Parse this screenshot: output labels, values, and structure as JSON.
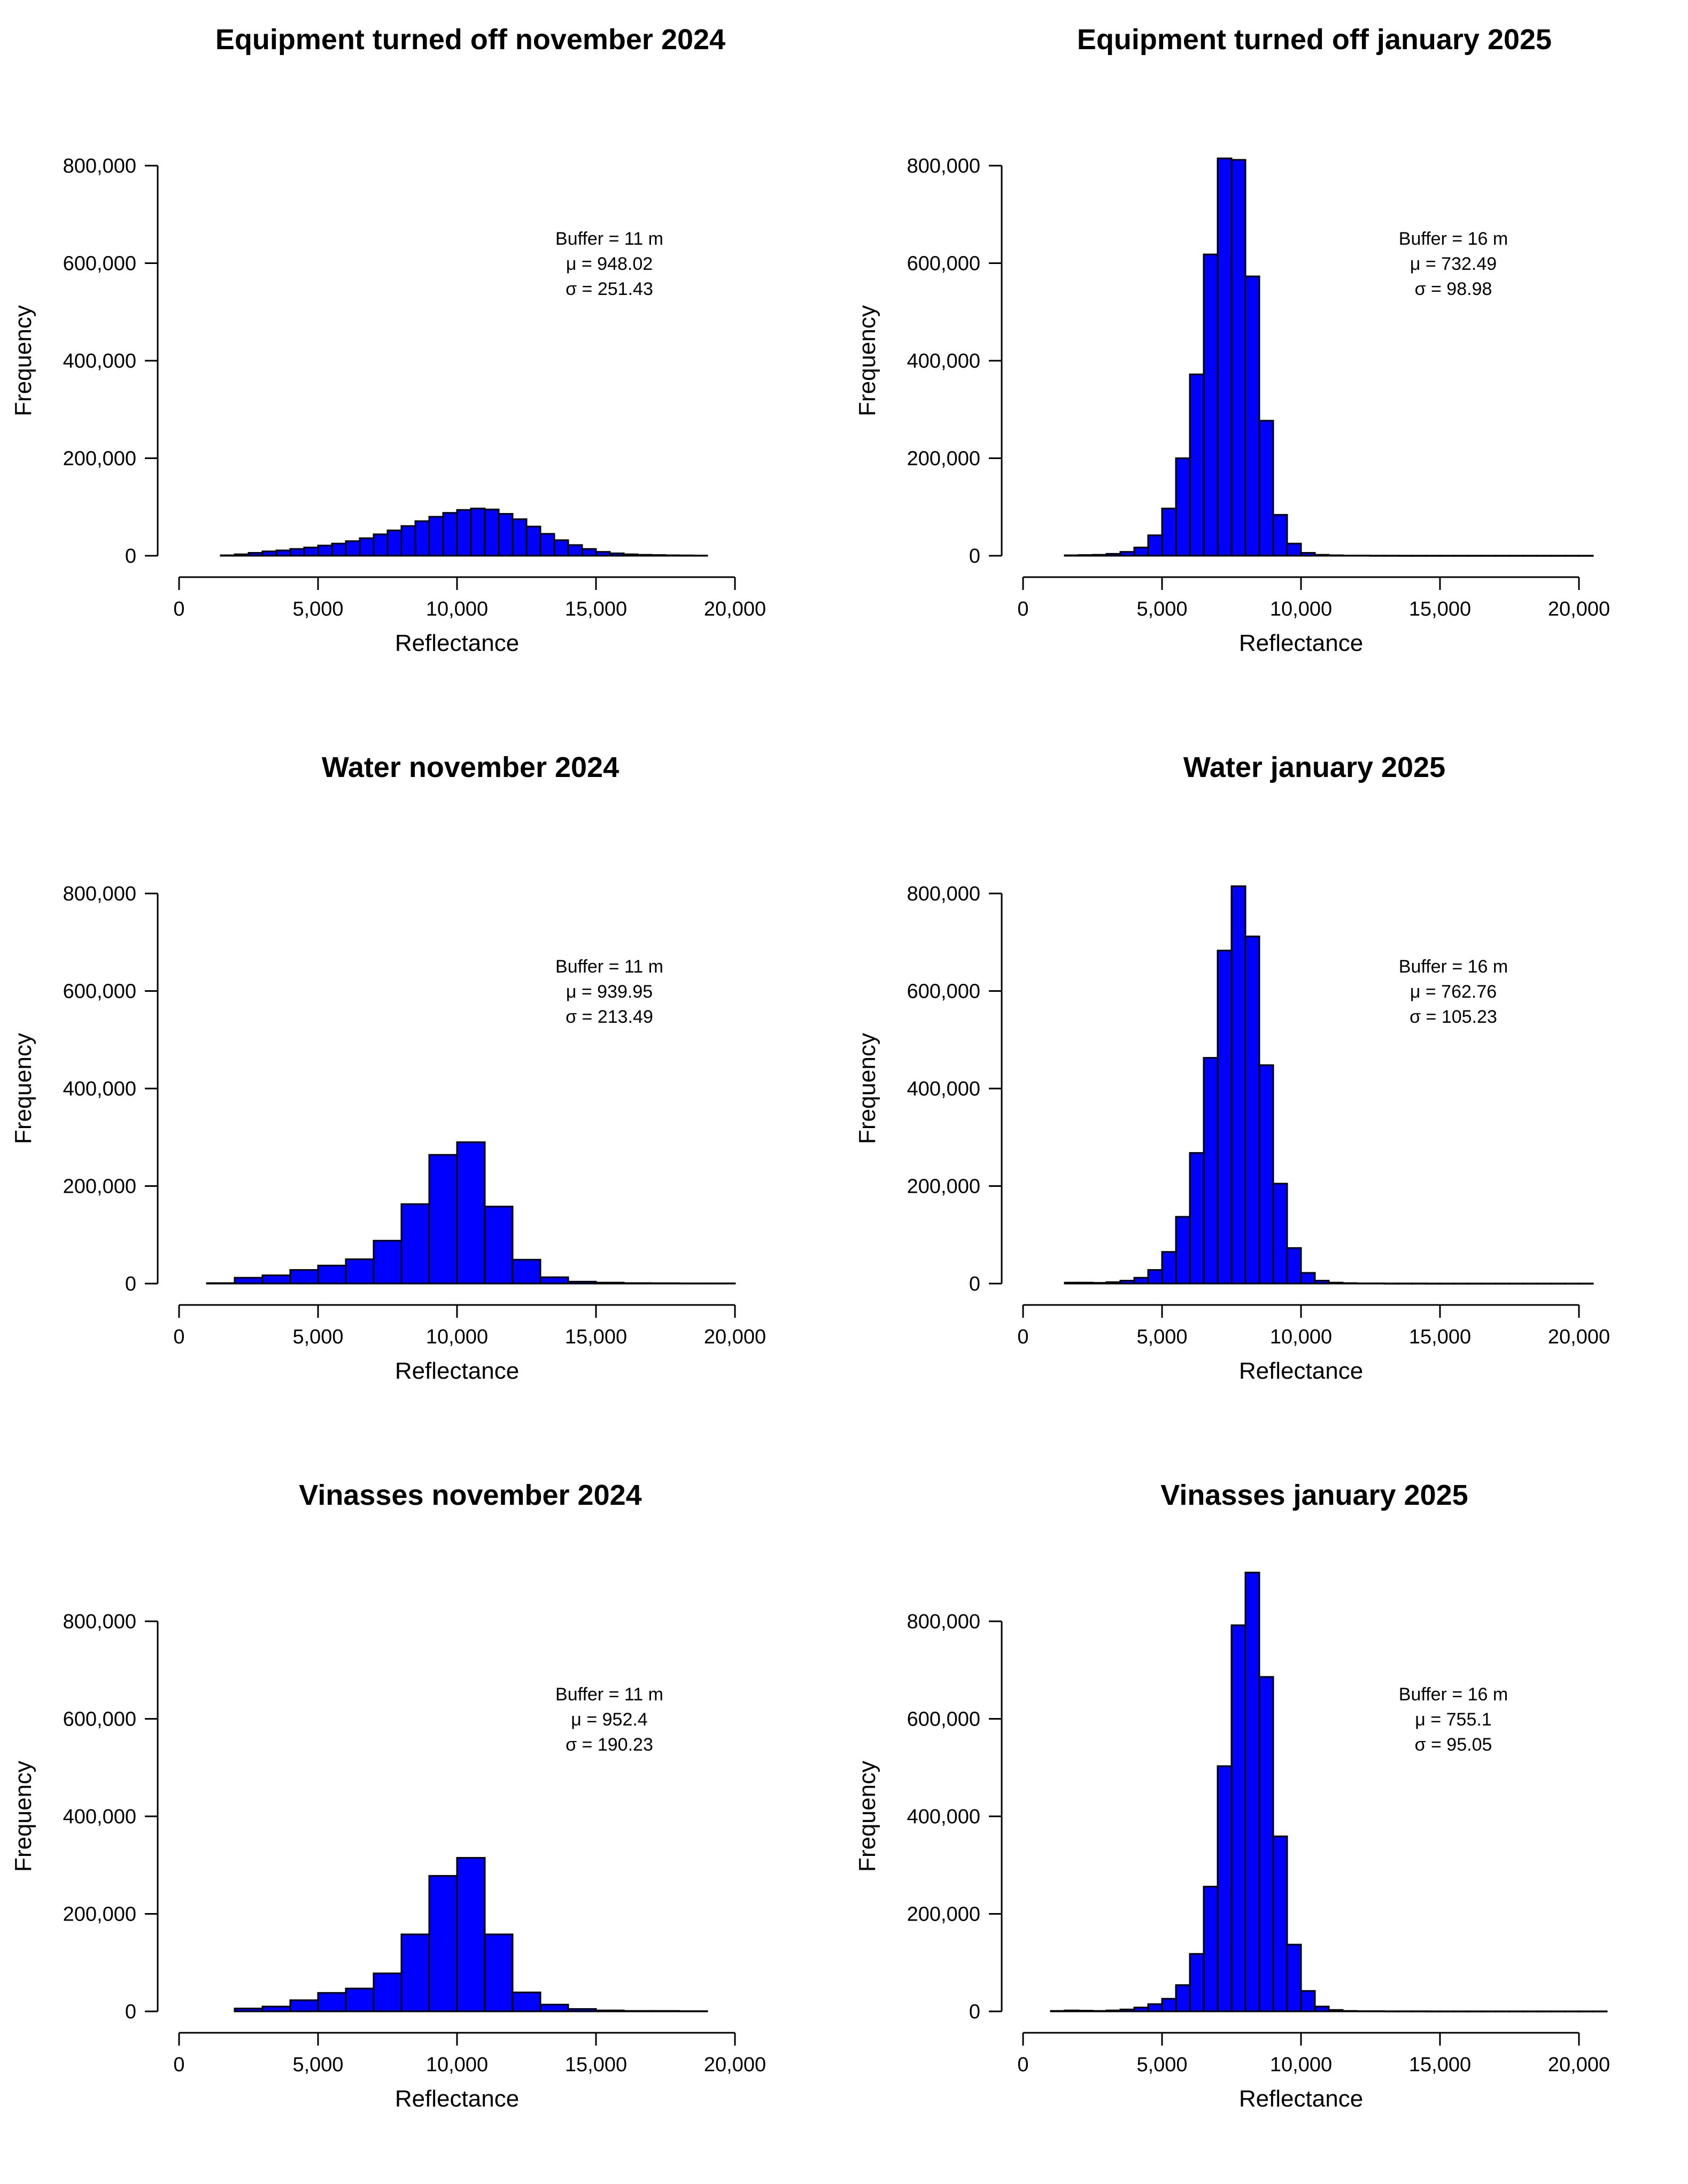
{
  "colors": {
    "bar_fill": "#0000ff",
    "bar_stroke": "#000000",
    "background": "#ffffff"
  },
  "chart_data": [
    {
      "type": "bar",
      "title": "Equipment turned off november 2024",
      "xlabel": "Reflectance",
      "ylabel": "Frequency",
      "xlim": [
        0,
        20000
      ],
      "ylim": [
        0,
        800000
      ],
      "x_ticks": [
        0,
        5000,
        10000,
        15000,
        20000
      ],
      "x_tick_labels": [
        "0",
        "5,000",
        "10,000",
        "15,000",
        "20,000"
      ],
      "y_ticks": [
        0,
        200000,
        400000,
        600000,
        800000
      ],
      "y_tick_labels": [
        "0",
        "200,000",
        "400,000",
        "600,000",
        "800,000"
      ],
      "bins_start": 1500,
      "bin_width": 500,
      "values": [
        1000,
        3000,
        6000,
        9000,
        11000,
        14000,
        17000,
        21000,
        25000,
        30000,
        36000,
        44000,
        52000,
        61000,
        71000,
        80000,
        88000,
        94000,
        97000,
        95000,
        86000,
        75000,
        60000,
        45000,
        32000,
        22000,
        14000,
        8000,
        5000,
        3000,
        2000,
        1500,
        1000,
        800,
        500
      ],
      "stats": {
        "buffer": "Buffer = 11 m",
        "mu": "μ =  948.02",
        "sigma": "σ =  251.43"
      }
    },
    {
      "type": "bar",
      "title": "Equipment turned off january 2025",
      "xlabel": "Reflectance",
      "ylabel": "Frequency",
      "xlim": [
        0,
        20000
      ],
      "ylim": [
        0,
        800000
      ],
      "x_ticks": [
        0,
        5000,
        10000,
        15000,
        20000
      ],
      "x_tick_labels": [
        "0",
        "5,000",
        "10,000",
        "15,000",
        "20,000"
      ],
      "y_ticks": [
        0,
        200000,
        400000,
        600000,
        800000
      ],
      "y_tick_labels": [
        "0",
        "200,000",
        "400,000",
        "600,000",
        "800,000"
      ],
      "bins_start": 1500,
      "bin_width": 500,
      "values": [
        1000,
        1500,
        2000,
        4000,
        8000,
        17000,
        42000,
        97000,
        200000,
        372000,
        618000,
        815000,
        812000,
        573000,
        277000,
        84000,
        25000,
        6000,
        2000,
        1000,
        500,
        500,
        300,
        300,
        200,
        200,
        200,
        200,
        200,
        200,
        200,
        200,
        200,
        200,
        200,
        200,
        200,
        200
      ],
      "stats": {
        "buffer": "Buffer = 16 m",
        "mu": "μ =  732.49",
        "sigma": "σ =  98.98"
      }
    },
    {
      "type": "bar",
      "title": "Water november 2024",
      "xlabel": "Reflectance",
      "ylabel": "Frequency",
      "xlim": [
        0,
        20000
      ],
      "ylim": [
        0,
        800000
      ],
      "x_ticks": [
        0,
        5000,
        10000,
        15000,
        20000
      ],
      "x_tick_labels": [
        "0",
        "5,000",
        "10,000",
        "15,000",
        "20,000"
      ],
      "y_ticks": [
        0,
        200000,
        400000,
        600000,
        800000
      ],
      "y_tick_labels": [
        "0",
        "200,000",
        "400,000",
        "600,000",
        "800,000"
      ],
      "bins_start": 1000,
      "bin_width": 1000,
      "values": [
        1000,
        12000,
        17000,
        28000,
        37000,
        50000,
        88000,
        163000,
        264000,
        290000,
        158000,
        49000,
        13000,
        4000,
        2000,
        1000,
        800,
        500,
        500
      ],
      "stats": {
        "buffer": "Buffer = 11 m",
        "mu": "μ =  939.95",
        "sigma": "σ =  213.49"
      }
    },
    {
      "type": "bar",
      "title": "Water january 2025",
      "xlabel": "Reflectance",
      "ylabel": "Frequency",
      "xlim": [
        0,
        20000
      ],
      "ylim": [
        0,
        800000
      ],
      "x_ticks": [
        0,
        5000,
        10000,
        15000,
        20000
      ],
      "x_tick_labels": [
        "0",
        "5,000",
        "10,000",
        "15,000",
        "20,000"
      ],
      "y_ticks": [
        0,
        200000,
        400000,
        600000,
        800000
      ],
      "y_tick_labels": [
        "0",
        "200,000",
        "400,000",
        "600,000",
        "800,000"
      ],
      "bins_start": 1500,
      "bin_width": 500,
      "values": [
        2000,
        2000,
        1500,
        3000,
        6000,
        12000,
        28000,
        65000,
        137000,
        268000,
        463000,
        683000,
        815000,
        712000,
        448000,
        205000,
        73000,
        22000,
        6000,
        2000,
        1000,
        500,
        500,
        300,
        300,
        300,
        200,
        200,
        200,
        200,
        200,
        200,
        200,
        200,
        200,
        200,
        200,
        200
      ],
      "stats": {
        "buffer": "Buffer = 16 m",
        "mu": "μ =  762.76",
        "sigma": "σ =  105.23"
      }
    },
    {
      "type": "bar",
      "title": "Vinasses november 2024",
      "xlabel": "Reflectance",
      "ylabel": "Frequency",
      "xlim": [
        0,
        20000
      ],
      "ylim": [
        0,
        800000
      ],
      "x_ticks": [
        0,
        5000,
        10000,
        15000,
        20000
      ],
      "x_tick_labels": [
        "0",
        "5,000",
        "10,000",
        "15,000",
        "20,000"
      ],
      "y_ticks": [
        0,
        200000,
        400000,
        600000,
        800000
      ],
      "y_tick_labels": [
        "0",
        "200,000",
        "400,000",
        "600,000",
        "800,000"
      ],
      "bins_start": 2000,
      "bin_width": 1000,
      "values": [
        6000,
        10000,
        23000,
        38000,
        47000,
        78000,
        158000,
        278000,
        315000,
        158000,
        39000,
        14000,
        5000,
        2000,
        1000,
        1000,
        500
      ],
      "stats": {
        "buffer": "Buffer = 11 m",
        "mu": "μ =  952.4",
        "sigma": "σ =  190.23"
      }
    },
    {
      "type": "bar",
      "title": "Vinasses january 2025",
      "xlabel": "Reflectance",
      "ylabel": "Frequency",
      "xlim": [
        0,
        20000
      ],
      "ylim": [
        0,
        800000
      ],
      "x_ticks": [
        0,
        5000,
        10000,
        15000,
        20000
      ],
      "x_tick_labels": [
        "0",
        "5,000",
        "10,000",
        "15,000",
        "20,000"
      ],
      "y_ticks": [
        0,
        200000,
        400000,
        600000,
        800000
      ],
      "y_tick_labels": [
        "0",
        "200,000",
        "400,000",
        "600,000",
        "800,000"
      ],
      "bins_start": 1000,
      "bin_width": 500,
      "values": [
        1000,
        2000,
        1500,
        1000,
        2000,
        4000,
        8000,
        15000,
        26000,
        54000,
        118000,
        256000,
        503000,
        792000,
        900000,
        686000,
        359000,
        137000,
        42000,
        10000,
        3000,
        1000,
        500,
        500,
        300,
        300,
        300,
        200,
        200,
        200,
        200,
        200,
        200,
        200,
        200,
        200,
        200,
        200,
        200,
        200
      ],
      "stats": {
        "buffer": "Buffer = 16 m",
        "mu": "μ =  755.1",
        "sigma": "σ =  95.05"
      }
    }
  ]
}
